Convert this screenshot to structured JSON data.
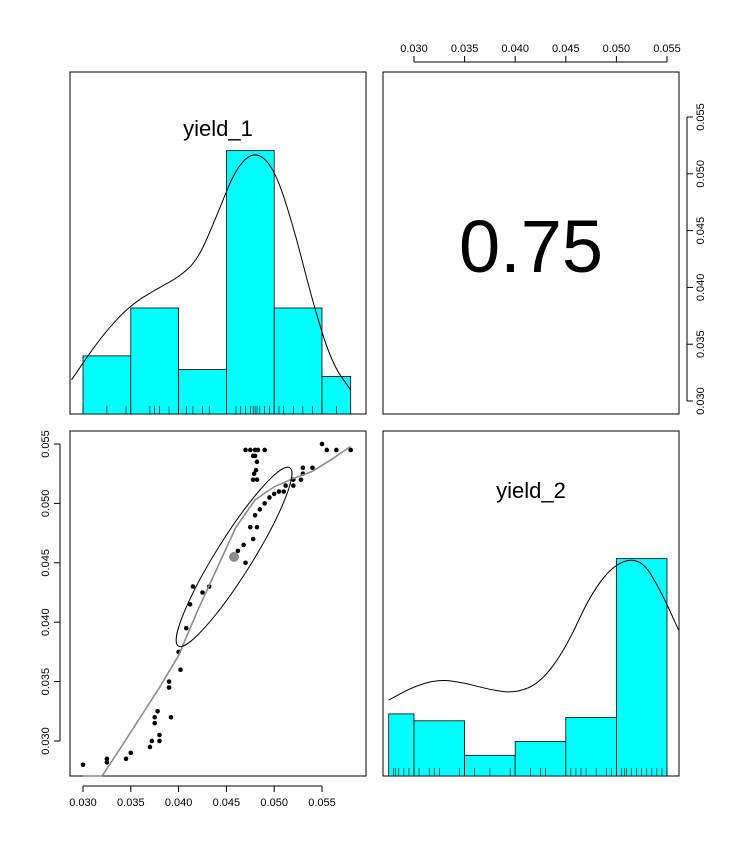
{
  "chart_data": {
    "type": "scatter-matrix",
    "variables": [
      "yield_1",
      "yield_2"
    ],
    "correlation": "0.75",
    "ticks": [
      "0.030",
      "0.035",
      "0.040",
      "0.045",
      "0.050",
      "0.055"
    ],
    "tick_values": [
      0.03,
      0.035,
      0.04,
      0.045,
      0.05,
      0.055
    ],
    "bar_color": "#00FFFF",
    "scatter": {
      "x": [
        0.03,
        0.0325,
        0.0325,
        0.0345,
        0.035,
        0.037,
        0.0372,
        0.0375,
        0.0375,
        0.038,
        0.038,
        0.0378,
        0.039,
        0.039,
        0.0392,
        0.04,
        0.0402,
        0.0408,
        0.0412,
        0.0415,
        0.0425,
        0.0432,
        0.046,
        0.0462,
        0.047,
        0.0468,
        0.0475,
        0.0478,
        0.048,
        0.0482,
        0.0485,
        0.049,
        0.0495,
        0.05,
        0.0505,
        0.051,
        0.0512,
        0.052,
        0.052,
        0.053,
        0.0528,
        0.053,
        0.054,
        0.055,
        0.0555,
        0.0565,
        0.058,
        0.047,
        0.0475,
        0.0478,
        0.048,
        0.0482,
        0.0483,
        0.0478,
        0.0479,
        0.0481,
        0.048,
        0.0482,
        0.049
      ],
      "y": [
        0.028,
        0.0282,
        0.0285,
        0.0285,
        0.029,
        0.0295,
        0.03,
        0.0315,
        0.032,
        0.0305,
        0.03,
        0.0325,
        0.0345,
        0.035,
        0.032,
        0.0375,
        0.036,
        0.0395,
        0.0415,
        0.043,
        0.0425,
        0.043,
        0.0455,
        0.046,
        0.045,
        0.0465,
        0.048,
        0.047,
        0.049,
        0.048,
        0.0495,
        0.05,
        0.0505,
        0.0508,
        0.051,
        0.051,
        0.0515,
        0.052,
        0.0515,
        0.0525,
        0.052,
        0.053,
        0.053,
        0.055,
        0.0545,
        0.0545,
        0.0545,
        0.0545,
        0.0545,
        0.054,
        0.054,
        0.0535,
        0.0545,
        0.052,
        0.0525,
        0.0528,
        0.0545,
        0.052,
        0.0545
      ],
      "mean_point": [
        0.0458,
        0.0455
      ],
      "loess": {
        "x": [
          0.03,
          0.032,
          0.034,
          0.036,
          0.038,
          0.04,
          0.042,
          0.044,
          0.046,
          0.048,
          0.05,
          0.052,
          0.054,
          0.056,
          0.058
        ],
        "y": [
          0.0245,
          0.027,
          0.0295,
          0.032,
          0.0345,
          0.0372,
          0.041,
          0.0445,
          0.048,
          0.0503,
          0.0514,
          0.0521,
          0.0527,
          0.0537,
          0.0548
        ]
      },
      "ellipse": {
        "center": [
          0.0458,
          0.0455
        ],
        "rx": 0.011,
        "ry": 0.0019,
        "angle_deg": 58
      }
    },
    "hist_1": {
      "bins": [
        0.03,
        0.035,
        0.04,
        0.045,
        0.05,
        0.055,
        0.058
      ],
      "heights": [
        0.17,
        0.31,
        0.13,
        0.77,
        0.31,
        0.11
      ],
      "density": [
        [
          0.0288,
          0.1
        ],
        [
          0.032,
          0.23
        ],
        [
          0.035,
          0.32
        ],
        [
          0.038,
          0.37
        ],
        [
          0.04,
          0.4
        ],
        [
          0.042,
          0.45
        ],
        [
          0.044,
          0.58
        ],
        [
          0.046,
          0.72
        ],
        [
          0.048,
          0.77
        ],
        [
          0.05,
          0.72
        ],
        [
          0.052,
          0.55
        ],
        [
          0.054,
          0.33
        ],
        [
          0.056,
          0.15
        ],
        [
          0.058,
          0.07
        ]
      ],
      "rug": [
        0.03,
        0.0325,
        0.0345,
        0.035,
        0.037,
        0.0375,
        0.038,
        0.039,
        0.04,
        0.0408,
        0.0415,
        0.0425,
        0.0432,
        0.046,
        0.0465,
        0.047,
        0.0475,
        0.0478,
        0.048,
        0.0482,
        0.0485,
        0.049,
        0.0495,
        0.05,
        0.0505,
        0.051,
        0.052,
        0.053,
        0.054,
        0.055,
        0.0565,
        0.058
      ]
    },
    "hist_2": {
      "bins": [
        0.0275,
        0.03,
        0.035,
        0.04,
        0.045,
        0.05,
        0.055
      ],
      "heights": [
        0.18,
        0.16,
        0.06,
        0.1,
        0.17,
        0.63
      ],
      "density": [
        [
          0.0275,
          0.22
        ],
        [
          0.03,
          0.26
        ],
        [
          0.0325,
          0.28
        ],
        [
          0.035,
          0.27
        ],
        [
          0.0375,
          0.25
        ],
        [
          0.04,
          0.24
        ],
        [
          0.0425,
          0.27
        ],
        [
          0.045,
          0.37
        ],
        [
          0.0475,
          0.53
        ],
        [
          0.05,
          0.62
        ],
        [
          0.0525,
          0.63
        ],
        [
          0.0545,
          0.53
        ],
        [
          0.0565,
          0.42
        ]
      ],
      "rug": [
        0.028,
        0.0282,
        0.0285,
        0.029,
        0.0295,
        0.03,
        0.0305,
        0.0315,
        0.032,
        0.0325,
        0.0345,
        0.035,
        0.036,
        0.0375,
        0.0395,
        0.0415,
        0.0425,
        0.043,
        0.045,
        0.0455,
        0.046,
        0.0465,
        0.047,
        0.048,
        0.049,
        0.0495,
        0.05,
        0.0505,
        0.0508,
        0.051,
        0.0515,
        0.052,
        0.0525,
        0.053,
        0.0535,
        0.054,
        0.0545,
        0.055
      ]
    }
  }
}
